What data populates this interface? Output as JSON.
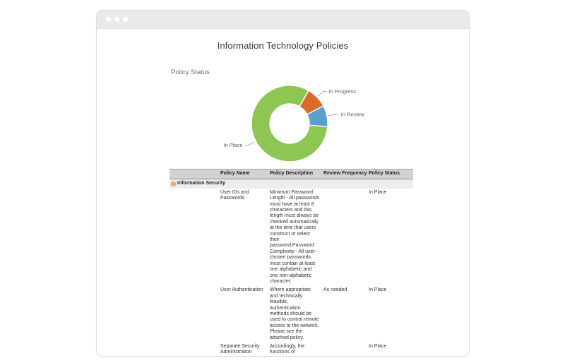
{
  "window": {
    "controls": [
      "close",
      "minimize",
      "maximize"
    ]
  },
  "page": {
    "title": "Information Technology Policies"
  },
  "chart_data": {
    "type": "pie",
    "donut": true,
    "title": "Policy Status",
    "start_angle_deg": 30,
    "units": "percent",
    "labels": "callout",
    "slices": [
      {
        "label": "In Progress",
        "value": 9,
        "color": "#DB6B28"
      },
      {
        "label": "In Review",
        "value": 9,
        "color": "#58A1CC"
      },
      {
        "label": "In Place",
        "value": 82,
        "color": "#8DC652"
      }
    ]
  },
  "table": {
    "columns": [
      "Policy Name",
      "Policy Description",
      "Review Frequency",
      "Policy Status"
    ],
    "group": {
      "label": "Information Security",
      "expanded": true,
      "collapse_icon": "minus-circle-icon"
    },
    "rows": [
      {
        "name": "User IDs and Passwords",
        "description": "Minimum Password Length - All passwords must have at least 8 characters and this length must always be checked automatically at the time that users construct or select their password.Password Complexity - All user-chosen passwords must contain at least one alphabetic and one non-alphabetic character.",
        "frequency": "",
        "status": "In Place"
      },
      {
        "name": "User Authentication",
        "description": "Where appropriate and technically feasible, authentication methods should be used to control remote access to the network. Please see the attached policy.",
        "frequency": "As needed",
        "status": "In Place"
      },
      {
        "name": "Separate Security Administration Functions",
        "description": "Accordingly, the functions of information technology security",
        "frequency": "",
        "status": "In Place"
      }
    ]
  }
}
